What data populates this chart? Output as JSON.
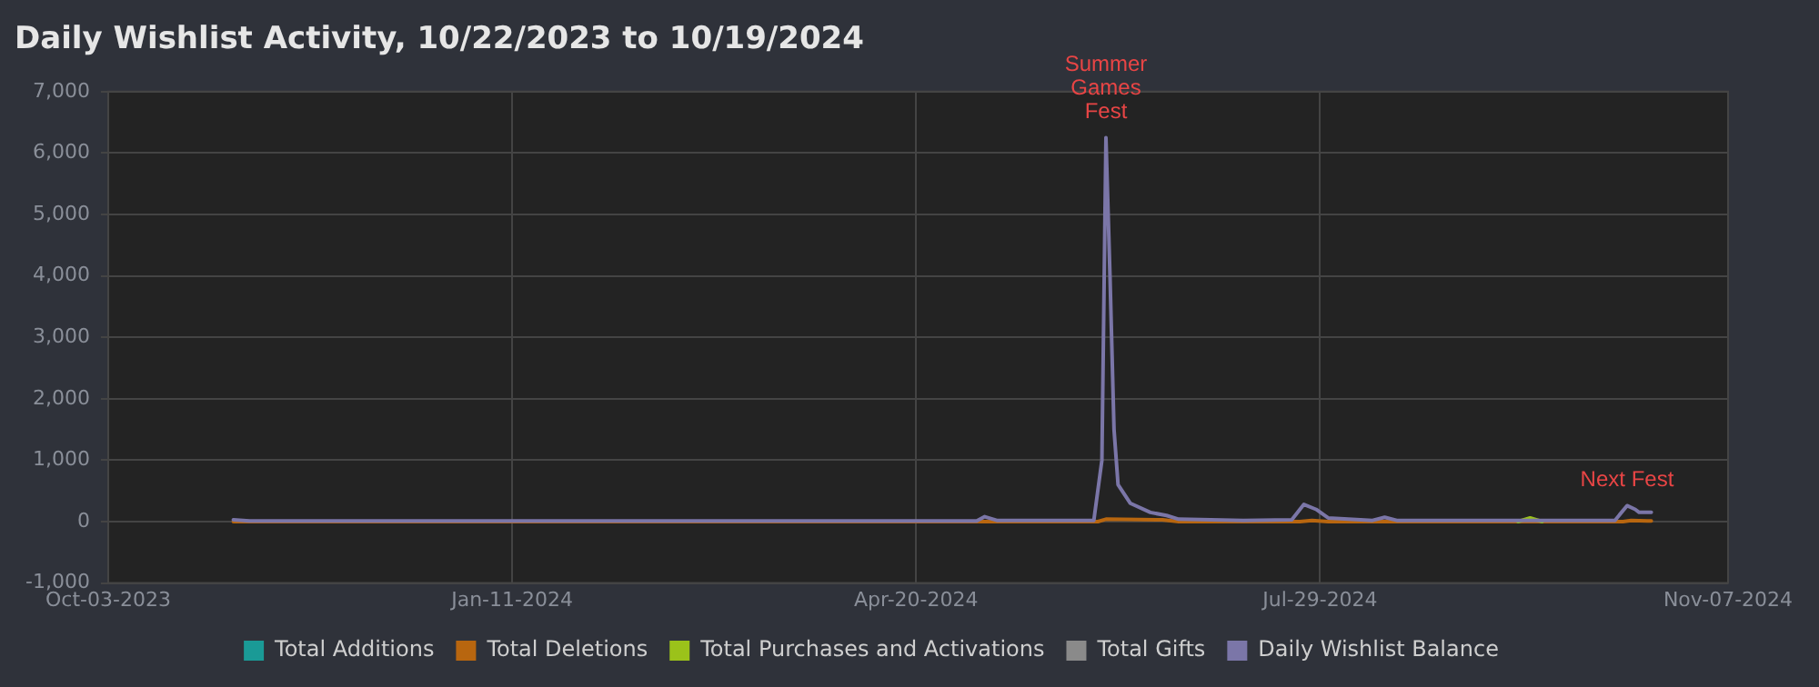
{
  "chart_data": {
    "type": "line",
    "title": "Daily Wishlist Activity, 10/22/2023 to 10/19/2024",
    "xlim": [
      "2023-10-03",
      "2024-11-07"
    ],
    "xticks": [
      {
        "value": "2023-10-03",
        "label": "Oct-03-2023"
      },
      {
        "value": "2024-01-11",
        "label": "Jan-11-2024"
      },
      {
        "value": "2024-04-20",
        "label": "Apr-20-2024"
      },
      {
        "value": "2024-07-29",
        "label": "Jul-29-2024"
      },
      {
        "value": "2024-11-07",
        "label": "Nov-07-2024"
      }
    ],
    "ylim": [
      -1000,
      7000
    ],
    "yticks": [
      {
        "value": -1000,
        "label": "-1,000"
      },
      0,
      {
        "value": 1000,
        "label": "1,000"
      },
      {
        "value": 2000,
        "label": "2,000"
      },
      {
        "value": 3000,
        "label": "3,000"
      },
      {
        "value": 4000,
        "label": "4,000"
      },
      {
        "value": 5000,
        "label": "5,000"
      },
      {
        "value": 6000,
        "label": "6,000"
      },
      {
        "value": 7000,
        "label": "7,000"
      }
    ],
    "grid": true,
    "legend": "bottom",
    "marker": "none",
    "line_style": "solid",
    "series": [
      {
        "name": "Total Additions",
        "color": "#1a9a96"
      },
      {
        "name": "Total Deletions",
        "color": "#b8660f",
        "x": [
          "2023-11-03",
          "2024-06-04",
          "2024-06-06",
          "2024-06-20",
          "2024-06-24",
          "2024-07-24",
          "2024-07-27",
          "2024-07-31",
          "2024-10-12",
          "2024-10-14",
          "2024-10-18",
          "2024-10-19"
        ],
        "values": [
          0,
          0,
          40,
          30,
          0,
          0,
          20,
          0,
          0,
          20,
          10,
          10
        ]
      },
      {
        "name": "Total Purchases and Activations",
        "color": "#9bc21a",
        "x": [
          "2024-09-16",
          "2024-09-19",
          "2024-09-22"
        ],
        "values": [
          0,
          60,
          0
        ]
      },
      {
        "name": "Total Gifts",
        "color": "#8a8a8a"
      },
      {
        "name": "Daily Wishlist Balance",
        "color": "#7b76a8",
        "x": [
          "2023-11-03",
          "2023-11-07",
          "2023-12-10",
          "2024-02-15",
          "2024-05-05",
          "2024-05-07",
          "2024-05-10",
          "2024-06-03",
          "2024-06-05",
          "2024-06-06",
          "2024-06-07",
          "2024-06-08",
          "2024-06-09",
          "2024-06-12",
          "2024-06-17",
          "2024-06-21",
          "2024-06-24",
          "2024-07-10",
          "2024-07-22",
          "2024-07-25",
          "2024-07-28",
          "2024-07-31",
          "2024-08-11",
          "2024-08-14",
          "2024-08-17",
          "2024-09-20",
          "2024-10-10",
          "2024-10-13",
          "2024-10-15",
          "2024-10-16",
          "2024-10-19"
        ],
        "values": [
          30,
          10,
          10,
          10,
          10,
          80,
          20,
          20,
          1000,
          6250,
          4000,
          1500,
          600,
          300,
          150,
          100,
          40,
          20,
          30,
          280,
          200,
          60,
          20,
          70,
          20,
          20,
          20,
          260,
          200,
          150,
          150
        ]
      }
    ],
    "annotations": [
      {
        "text": "Summer Games Fest",
        "x": "2024-06-06",
        "y": 6250
      },
      {
        "text": "Next Fest",
        "x": "2024-10-13",
        "y": 260
      }
    ]
  }
}
